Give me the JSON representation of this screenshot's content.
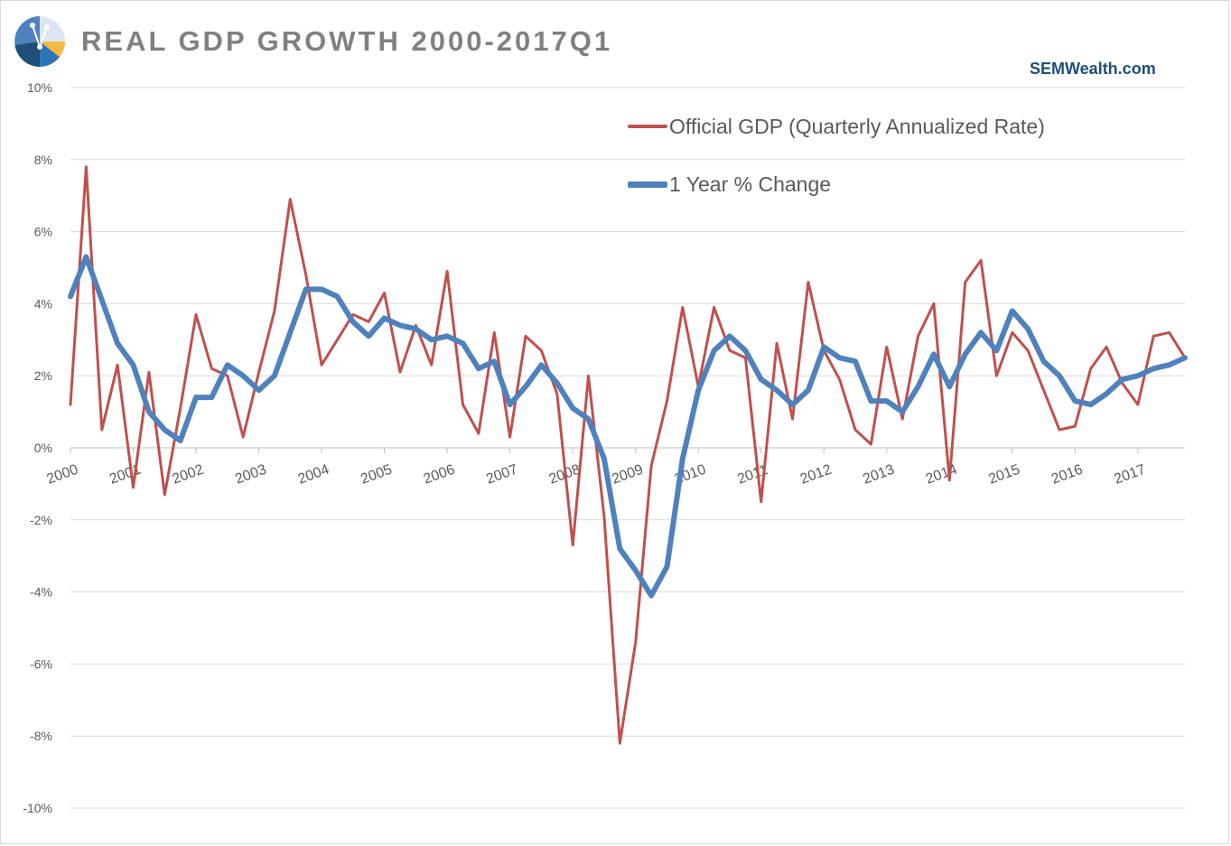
{
  "title": "REAL GDP GROWTH 2000-2017Q1",
  "source": "SEMWealth.com",
  "colors": {
    "official": "#c0504d",
    "yoy": "#4f81bd",
    "grid": "#d9d9d9",
    "title": "#808080",
    "source": "#1f4e79"
  },
  "chart_data": {
    "type": "line",
    "title": "REAL GDP GROWTH 2000-2017Q1",
    "xlabel": "",
    "ylabel": "",
    "ylim": [
      -10,
      10
    ],
    "grid": true,
    "legend_position": "top-right",
    "y_ticks": [
      "10%",
      "8%",
      "6%",
      "4%",
      "2%",
      "0%",
      "-2%",
      "-4%",
      "-6%",
      "-8%",
      "-10%"
    ],
    "x_ticks": [
      "2000",
      "2001",
      "2002",
      "2003",
      "2004",
      "2005",
      "2006",
      "2007",
      "2008",
      "2009",
      "2010",
      "2011",
      "2012",
      "2013",
      "2014",
      "2015",
      "2016",
      "2017"
    ],
    "series": [
      {
        "name": "Official GDP (Quarterly Annualized Rate)",
        "values": [
          1.2,
          7.8,
          0.5,
          2.3,
          -1.1,
          2.1,
          -1.3,
          1.1,
          3.7,
          2.2,
          2.0,
          0.3,
          2.1,
          3.8,
          6.9,
          4.8,
          2.3,
          3.0,
          3.7,
          3.5,
          4.3,
          2.1,
          3.4,
          2.3,
          4.9,
          1.2,
          0.4,
          3.2,
          0.3,
          3.1,
          2.7,
          1.5,
          -2.7,
          2.0,
          -1.9,
          -8.2,
          -5.4,
          -0.5,
          1.3,
          3.9,
          1.7,
          3.9,
          2.7,
          2.5,
          -1.5,
          2.9,
          0.8,
          4.6,
          2.7,
          1.9,
          0.5,
          0.1,
          2.8,
          0.8,
          3.1,
          4.0,
          -0.9,
          4.6,
          5.2,
          2.0,
          3.2,
          2.7,
          1.6,
          0.5,
          0.6,
          2.2,
          2.8,
          1.8,
          1.2,
          3.1,
          3.2,
          2.5
        ]
      },
      {
        "name": "1 Year % Change",
        "values": [
          4.2,
          5.3,
          4.1,
          2.9,
          2.3,
          1.0,
          0.5,
          0.2,
          1.4,
          1.4,
          2.3,
          2.0,
          1.6,
          2.0,
          3.2,
          4.4,
          4.4,
          4.2,
          3.5,
          3.1,
          3.6,
          3.4,
          3.3,
          3.0,
          3.1,
          2.9,
          2.2,
          2.4,
          1.2,
          1.7,
          2.3,
          1.8,
          1.1,
          0.8,
          -0.3,
          -2.8,
          -3.4,
          -4.1,
          -3.3,
          -0.3,
          1.6,
          2.7,
          3.1,
          2.7,
          1.9,
          1.6,
          1.2,
          1.6,
          2.8,
          2.5,
          2.4,
          1.3,
          1.3,
          1.0,
          1.7,
          2.6,
          1.7,
          2.6,
          3.2,
          2.7,
          3.8,
          3.3,
          2.4,
          2.0,
          1.3,
          1.2,
          1.5,
          1.9,
          2.0,
          2.2,
          2.3,
          2.5
        ]
      }
    ]
  }
}
